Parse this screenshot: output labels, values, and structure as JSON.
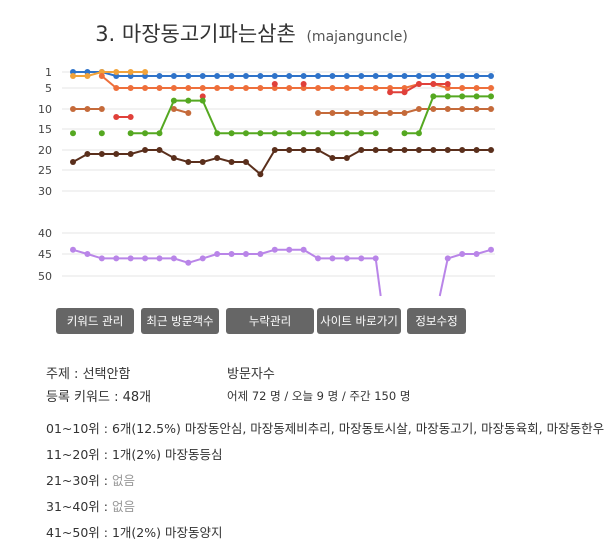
{
  "header": {
    "title": "3. 마장동고기파는삼촌",
    "subtitle": "(majanguncle)"
  },
  "chart_data": {
    "type": "line",
    "y_ticks": [
      "1",
      "5",
      "10",
      "15",
      "20",
      "25",
      "30",
      "40",
      "45",
      "50"
    ],
    "y_range": [
      1,
      50
    ],
    "y_inverted": true,
    "point_count": 30,
    "grid": "horizontal",
    "series": [
      {
        "color": "#2f73c9",
        "values": [
          1,
          1,
          1,
          2,
          2,
          2,
          2,
          2,
          2,
          2,
          2,
          2,
          2,
          2,
          2,
          2,
          2,
          2,
          2,
          2,
          2,
          2,
          2,
          2,
          2,
          2,
          2,
          2,
          2,
          2
        ]
      },
      {
        "color": "#f2a33a",
        "values": [
          2,
          2,
          1,
          1,
          1,
          1,
          null,
          null,
          null,
          null,
          null,
          null,
          null,
          null,
          null,
          null,
          null,
          null,
          null,
          null,
          null,
          null,
          null,
          null,
          null,
          null,
          null,
          null,
          null,
          null
        ]
      },
      {
        "color": "#ee6f3b",
        "values": [
          null,
          null,
          2,
          5,
          5,
          5,
          5,
          5,
          5,
          5,
          5,
          5,
          5,
          5,
          5,
          5,
          5,
          5,
          5,
          5,
          5,
          5,
          5,
          5,
          4,
          4,
          5,
          5,
          5,
          5
        ]
      },
      {
        "color": "#e0403a",
        "values": [
          null,
          null,
          null,
          12,
          12,
          null,
          null,
          null,
          null,
          7,
          null,
          null,
          null,
          null,
          4,
          null,
          4,
          null,
          null,
          null,
          null,
          null,
          6,
          6,
          4,
          4,
          4,
          null,
          null,
          null
        ]
      },
      {
        "color": "#c56a3a",
        "values": [
          10,
          10,
          10,
          null,
          null,
          null,
          null,
          10,
          11,
          null,
          null,
          null,
          null,
          null,
          null,
          null,
          null,
          11,
          11,
          11,
          11,
          11,
          11,
          11,
          10,
          10,
          10,
          10,
          10,
          10
        ]
      },
      {
        "color": "#55a821",
        "values": [
          16,
          null,
          16,
          null,
          16,
          16,
          16,
          8,
          8,
          8,
          16,
          16,
          16,
          16,
          16,
          16,
          16,
          16,
          16,
          16,
          16,
          16,
          null,
          16,
          16,
          7,
          7,
          7,
          7,
          7
        ]
      },
      {
        "color": "#5a2f1c",
        "values": [
          23,
          21,
          21,
          21,
          21,
          20,
          20,
          22,
          23,
          23,
          22,
          23,
          23,
          26,
          20,
          20,
          20,
          20,
          22,
          22,
          20,
          20,
          20,
          20,
          20,
          20,
          20,
          20,
          20,
          20
        ]
      },
      {
        "color": "#b985e8",
        "values": [
          44,
          45,
          46,
          46,
          46,
          46,
          46,
          46,
          47,
          46,
          45,
          45,
          45,
          45,
          44,
          44,
          44,
          46,
          46,
          46,
          46,
          46,
          null,
          null,
          null,
          null,
          46,
          45,
          45,
          44
        ]
      }
    ],
    "gaps": [
      {
        "series": 7,
        "from_index": 21,
        "to_index": 26,
        "note": "drop below chart"
      }
    ]
  },
  "buttons": [
    {
      "id": "keyword",
      "label": "키워드 관리"
    },
    {
      "id": "visitors",
      "label": "최근 방문객수"
    },
    {
      "id": "missing",
      "label": "누락관리"
    },
    {
      "id": "shortcut",
      "label": "사이트 바로가기"
    },
    {
      "id": "edit",
      "label": "정보수정"
    }
  ],
  "info": {
    "subject": "주제 : 선택안함",
    "keyword_count": "등록 키워드 : 48개",
    "visitors_label": "방문자수",
    "visitors_value": "어제 72 명 / 오늘 9 명 / 주간 150 명"
  },
  "ranks": [
    {
      "range": "01~10위 :",
      "text": "6개(12.5%) 마장동안심, 마장동제비추리, 마장동토시살, 마장동고기, 마장동육회, 마장동한우",
      "muted": false
    },
    {
      "range": "11~20위 :",
      "text": "1개(2%) 마장동등심",
      "muted": false
    },
    {
      "range": "21~30위 :",
      "text": "없음",
      "muted": true
    },
    {
      "range": "31~40위 :",
      "text": "없음",
      "muted": true
    },
    {
      "range": "41~50위 :",
      "text": "1개(2%) 마장동양지",
      "muted": false
    }
  ]
}
